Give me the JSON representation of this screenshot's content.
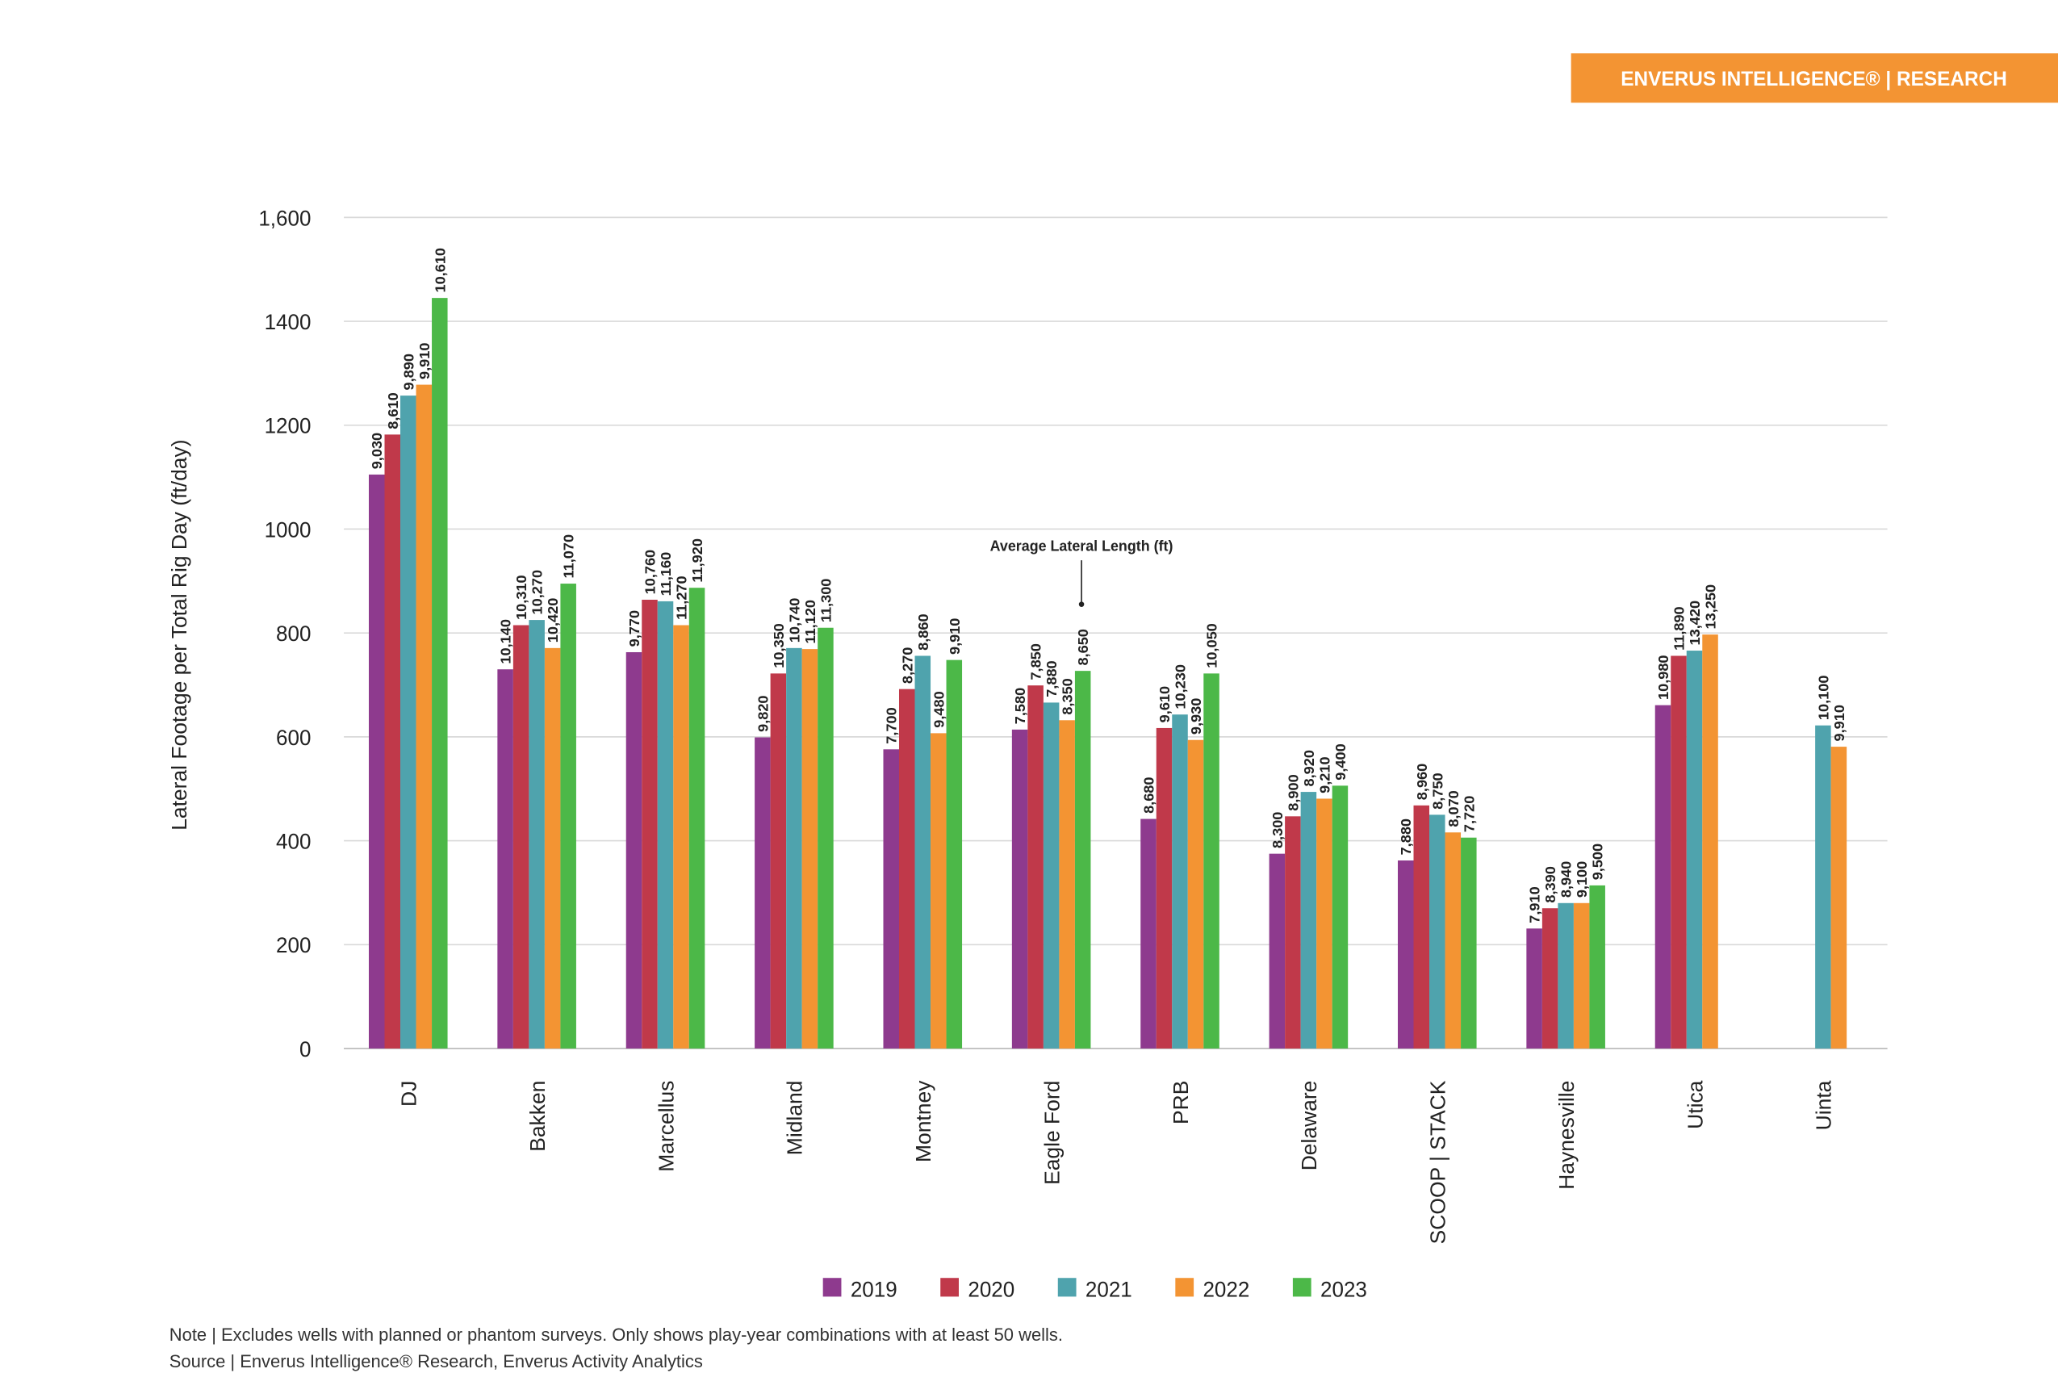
{
  "header": {
    "badge": "ENVERUS INTELLIGENCE® | RESEARCH"
  },
  "chart_data": {
    "type": "bar",
    "y_label": "Lateral Footage per Total Rig Day (ft/day)",
    "annotation": "Average Lateral Length (ft)",
    "categories": [
      "DJ",
      "Bakken",
      "Marcellus",
      "Midland",
      "Montney",
      "Eagle Ford",
      "PRB",
      "Delaware",
      "SCOOP | STACK",
      "Haynesville",
      "Utica",
      "Uinta"
    ],
    "series": [
      {
        "name": "2019",
        "color": "#8e3a8e",
        "values": [
          1105,
          730,
          763,
          599,
          576,
          614,
          442,
          375,
          362,
          231,
          661,
          null
        ],
        "lateral_length_labels": [
          "9,030",
          "10,140",
          "9,770",
          "9,820",
          "7,700",
          "7,580",
          "8,680",
          "8,300",
          "7,880",
          "7,910",
          "10,980",
          null
        ]
      },
      {
        "name": "2020",
        "color": "#c0394a",
        "values": [
          1182,
          815,
          864,
          722,
          692,
          699,
          617,
          447,
          468,
          270,
          756,
          null
        ],
        "lateral_length_labels": [
          "8,610",
          "10,310",
          "10,760",
          "10,350",
          "8,270",
          "7,850",
          "9,610",
          "8,900",
          "8,960",
          "8,390",
          "11,890",
          null
        ]
      },
      {
        "name": "2021",
        "color": "#4fa3ad",
        "values": [
          1257,
          825,
          861,
          771,
          756,
          666,
          643,
          494,
          450,
          280,
          766,
          622
        ],
        "lateral_length_labels": [
          "9,890",
          "10,270",
          "11,160",
          "10,740",
          "8,860",
          "7,880",
          "10,230",
          "8,920",
          "8,750",
          "8,940",
          "13,420",
          "10,100"
        ]
      },
      {
        "name": "2022",
        "color": "#f39433",
        "values": [
          1278,
          771,
          815,
          769,
          607,
          632,
          594,
          481,
          416,
          280,
          797,
          581
        ],
        "lateral_length_labels": [
          "9,910",
          "10,420",
          "11,270",
          "11,120",
          "9,480",
          "8,350",
          "9,930",
          "9,210",
          "8,070",
          "9,100",
          "13,250",
          "9,910"
        ]
      },
      {
        "name": "2023",
        "color": "#4cb848",
        "values": [
          1445,
          895,
          887,
          810,
          748,
          727,
          722,
          506,
          406,
          314,
          null,
          null
        ],
        "lateral_length_labels": [
          "10,610",
          "11,070",
          "11,920",
          "11,300",
          "9,910",
          "8,650",
          "10,050",
          "9,400",
          "7,720",
          "9,500",
          null,
          null
        ]
      }
    ],
    "ylim": [
      0,
      1600
    ],
    "yticks": [
      0,
      200,
      400,
      600,
      800,
      1000,
      1200,
      1400,
      {
        "value": 1600,
        "label": "1,600"
      }
    ],
    "grid": true
  },
  "footer": {
    "note": "Note | Excludes wells with planned or phantom surveys. Only shows play-year combinations with at least 50 wells.",
    "source": "Source | Enverus Intelligence® Research, Enverus Activity Analytics"
  }
}
